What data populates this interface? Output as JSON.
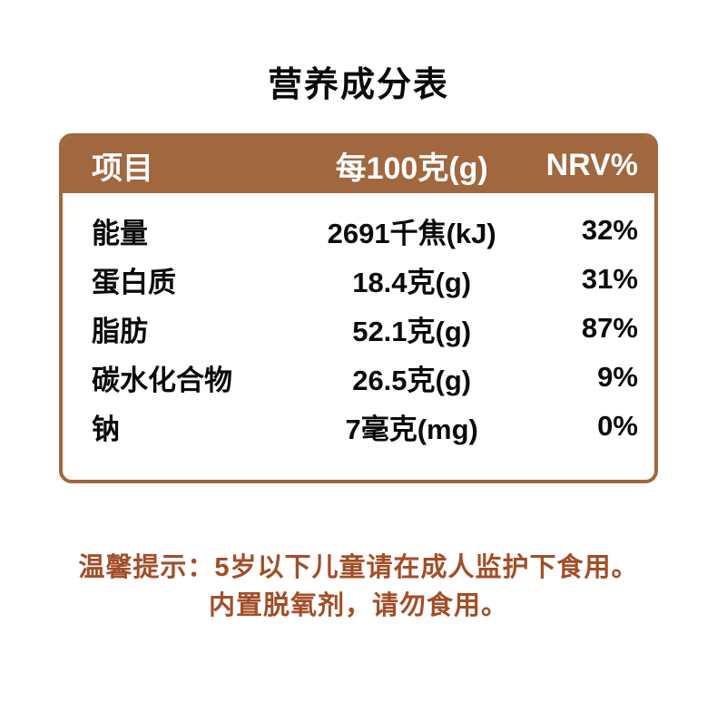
{
  "page": {
    "title": "营养成分表"
  },
  "table": {
    "headers": [
      "项目",
      "每100克(g)",
      "NRV%"
    ],
    "rows": [
      {
        "item": "能量",
        "per100g": "2691千焦(kJ)",
        "nrv": "32%"
      },
      {
        "item": "蛋白质",
        "per100g": "18.4克(g)",
        "nrv": "31%"
      },
      {
        "item": "脂肪",
        "per100g": "52.1克(g)",
        "nrv": "87%"
      },
      {
        "item": "碳水化合物",
        "per100g": "26.5克(g)",
        "nrv": "9%"
      },
      {
        "item": "钠",
        "per100g": "7毫克(mg)",
        "nrv": "0%"
      }
    ]
  },
  "tips": {
    "line1": "温馨提示：5岁以下儿童请在成人监护下食用。",
    "line2": "内置脱氧剂，请勿食用。"
  },
  "colors": {
    "header_bg": "#A1673F",
    "table_border": "#A1673F",
    "tip_text": "#A34E28",
    "body_text": "#0A0A0A",
    "header_text": "#FFFFFF",
    "background": "#FFFFFF"
  }
}
